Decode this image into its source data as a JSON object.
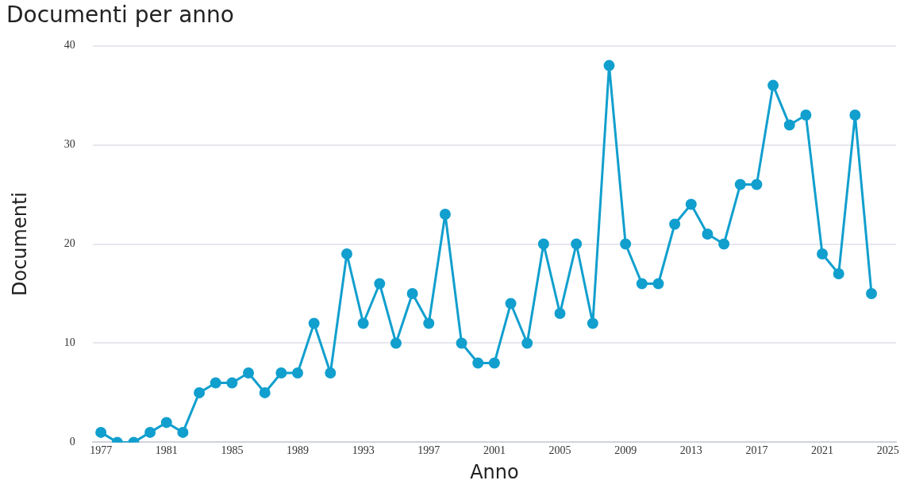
{
  "chart_data": {
    "type": "line",
    "title": "Documenti per anno",
    "xlabel": "Anno",
    "ylabel": "Documenti",
    "x": [
      1977,
      1978,
      1979,
      1980,
      1981,
      1982,
      1983,
      1984,
      1985,
      1986,
      1987,
      1988,
      1989,
      1990,
      1991,
      1992,
      1993,
      1994,
      1995,
      1996,
      1997,
      1998,
      1999,
      2000,
      2001,
      2002,
      2003,
      2004,
      2005,
      2006,
      2007,
      2008,
      2009,
      2010,
      2011,
      2012,
      2013,
      2014,
      2015,
      2016,
      2017,
      2018,
      2019,
      2020,
      2021,
      2022,
      2023,
      2024
    ],
    "series": [
      {
        "color": "#119fce",
        "values": [
          1,
          0,
          0,
          1,
          2,
          1,
          5,
          6,
          6,
          7,
          5,
          7,
          7,
          12,
          7,
          19,
          12,
          16,
          10,
          15,
          12,
          23,
          10,
          8,
          8,
          14,
          10,
          20,
          13,
          20,
          12,
          38,
          20,
          16,
          16,
          22,
          24,
          21,
          20,
          26,
          26,
          36,
          32,
          33,
          19,
          17,
          33,
          15
        ]
      }
    ],
    "xlim": [
      1976.5,
      2025.5
    ],
    "xticks": [
      1977,
      1981,
      1985,
      1989,
      1993,
      1997,
      2001,
      2005,
      2009,
      2013,
      2017,
      2021,
      2025
    ],
    "ylim": [
      0,
      40
    ],
    "yticks": [
      0,
      10,
      20,
      30,
      40
    ],
    "grid": "y",
    "legend": false,
    "marker": "circle",
    "line_style": "solid"
  }
}
